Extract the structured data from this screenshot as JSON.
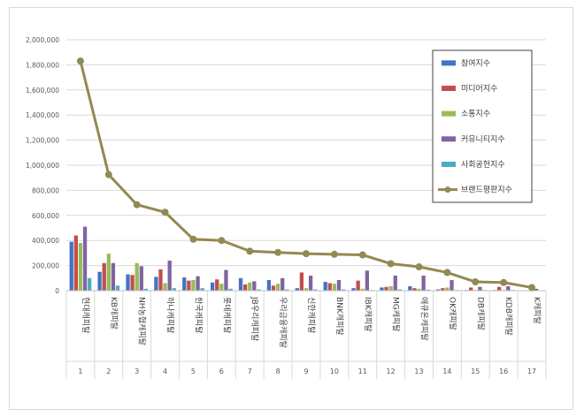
{
  "chart_data": {
    "type": "bar",
    "title": "",
    "xlabel": "",
    "ylabel": "",
    "ylim": [
      0,
      2000000
    ],
    "yticks": [
      "0",
      "200,000",
      "400,000",
      "600,000",
      "800,000",
      "1,000,000",
      "1,200,000",
      "1,400,000",
      "1,600,000",
      "1,800,000",
      "2,000,000"
    ],
    "ytick_values": [
      0,
      200000,
      400000,
      600000,
      800000,
      1000000,
      1200000,
      1400000,
      1600000,
      1800000,
      2000000
    ],
    "grid": true,
    "legend_position": "top-right",
    "categories": [
      "현대캐피탈",
      "KB캐피탈",
      "NH농협캐피탈",
      "하나캐피탈",
      "한국캐피탈",
      "롯데캐피탈",
      "JB우리캐피탈",
      "우리금융캐피탈",
      "신한캐피탈",
      "BNK캐피탈",
      "IBK캐피탈",
      "MG캐피탈",
      "애큐온캐피탈",
      "OK캐피탈",
      "DB캐피탈",
      "KDB캐피탈",
      "K캐피탈"
    ],
    "ranks": [
      "1",
      "2",
      "3",
      "4",
      "5",
      "6",
      "7",
      "8",
      "9",
      "10",
      "11",
      "12",
      "13",
      "14",
      "15",
      "16",
      "17"
    ],
    "series": [
      {
        "name": "참여지수",
        "type": "bar",
        "color": "#4472c4",
        "values": [
          390000,
          150000,
          130000,
          110000,
          105000,
          65000,
          100000,
          85000,
          20000,
          70000,
          20000,
          25000,
          35000,
          10000,
          5000,
          5000,
          3000
        ]
      },
      {
        "name": "미디어지수",
        "type": "bar",
        "color": "#c0504d",
        "values": [
          440000,
          220000,
          125000,
          170000,
          80000,
          90000,
          50000,
          40000,
          145000,
          60000,
          80000,
          30000,
          20000,
          20000,
          25000,
          30000,
          2000
        ]
      },
      {
        "name": "소통지수",
        "type": "bar",
        "color": "#9bbb59",
        "values": [
          380000,
          295000,
          220000,
          60000,
          85000,
          55000,
          65000,
          55000,
          20000,
          55000,
          15000,
          35000,
          15000,
          25000,
          5000,
          5000,
          3000
        ]
      },
      {
        "name": "커뮤니티지수",
        "type": "bar",
        "color": "#8064a2",
        "values": [
          510000,
          220000,
          195000,
          240000,
          115000,
          165000,
          75000,
          100000,
          120000,
          85000,
          160000,
          120000,
          120000,
          85000,
          30000,
          35000,
          15000
        ]
      },
      {
        "name": "사회공헌지수",
        "type": "bar",
        "color": "#4bacc6",
        "values": [
          100000,
          40000,
          15000,
          20000,
          20000,
          15000,
          10000,
          10000,
          10000,
          10000,
          5000,
          10000,
          8000,
          5000,
          5000,
          5000,
          3000
        ]
      },
      {
        "name": "브랜드평판지수",
        "type": "line",
        "color": "#938953",
        "values": [
          1830000,
          925000,
          685000,
          625000,
          410000,
          400000,
          315000,
          305000,
          295000,
          290000,
          285000,
          215000,
          190000,
          145000,
          70000,
          65000,
          25000
        ]
      }
    ]
  }
}
